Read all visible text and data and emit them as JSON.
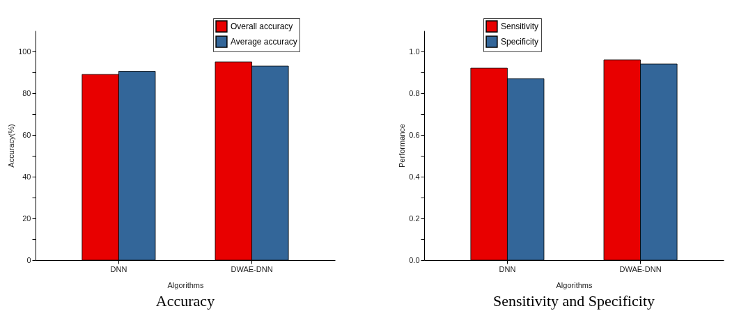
{
  "chart_data": [
    {
      "type": "bar",
      "title": "Accuracy",
      "xlabel": "Algorithms",
      "ylabel": "Accuracy(%)",
      "categories": [
        "DNN",
        "DWAE-DNN"
      ],
      "series": [
        {
          "name": "Overall accuracy",
          "color": "#e80000",
          "values": [
            89,
            95
          ]
        },
        {
          "name": "Average accuracy",
          "color": "#336699",
          "values": [
            90.5,
            93
          ]
        }
      ],
      "ylim": [
        0,
        110
      ],
      "yticks": [
        0,
        {
          "value": 10,
          "label": null
        },
        20,
        {
          "value": 30,
          "label": null
        },
        40,
        {
          "value": 50,
          "label": null
        },
        60,
        {
          "value": 70,
          "label": null
        },
        80,
        {
          "value": 90,
          "label": null
        },
        100
      ],
      "grid": false,
      "legend": "top right"
    },
    {
      "type": "bar",
      "title": "Sensitivity and Specificity",
      "xlabel": "Algorithms",
      "ylabel": "Performance",
      "categories": [
        "DNN",
        "DWAE-DNN"
      ],
      "series": [
        {
          "name": "Sensitivity",
          "color": "#e80000",
          "values": [
            0.92,
            0.96
          ]
        },
        {
          "name": "Specificity",
          "color": "#336699",
          "values": [
            0.87,
            0.94
          ]
        }
      ],
      "ylim": [
        0,
        1.1
      ],
      "yticks": [
        {
          "value": 0,
          "label": "0.0"
        },
        {
          "value": 0.1,
          "label": null
        },
        0.2,
        {
          "value": 0.3,
          "label": null
        },
        0.4,
        {
          "value": 0.5,
          "label": null
        },
        0.6,
        {
          "value": 0.7,
          "label": null
        },
        0.8,
        {
          "value": 0.9,
          "label": null
        },
        {
          "value": 1,
          "label": "1.0"
        }
      ],
      "grid": false,
      "legend": "top"
    }
  ]
}
